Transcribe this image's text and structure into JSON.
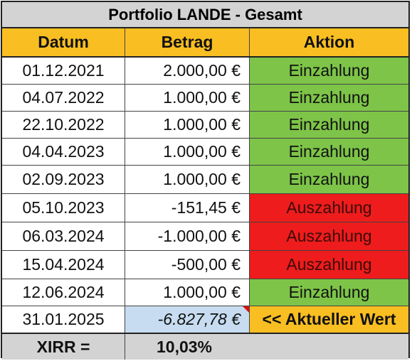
{
  "table": {
    "title": "Portfolio LANDE - Gesamt",
    "headers": {
      "date": "Datum",
      "amount": "Betrag",
      "action": "Aktion"
    },
    "rows": [
      {
        "date": "01.12.2021",
        "amount": "2.000,00 €",
        "action": "Einzahlung",
        "color": "#7dc448"
      },
      {
        "date": "04.07.2022",
        "amount": "1.000,00 €",
        "action": "Einzahlung",
        "color": "#7dc448"
      },
      {
        "date": "22.10.2022",
        "amount": "1.000,00 €",
        "action": "Einzahlung",
        "color": "#7dc448"
      },
      {
        "date": "04.04.2023",
        "amount": "1.000,00 €",
        "action": "Einzahlung",
        "color": "#7dc448"
      },
      {
        "date": "02.09.2023",
        "amount": "1.000,00 €",
        "action": "Einzahlung",
        "color": "#7dc448"
      },
      {
        "date": "05.10.2023",
        "amount": "-151,45 €",
        "action": "Auszahlung",
        "color": "#ee1c1c"
      },
      {
        "date": "06.03.2024",
        "amount": "-1.000,00 €",
        "action": "Auszahlung",
        "color": "#ee1c1c"
      },
      {
        "date": "15.04.2024",
        "amount": "-500,00 €",
        "action": "Auszahlung",
        "color": "#ee1c1c"
      },
      {
        "date": "12.06.2024",
        "amount": "1.000,00 €",
        "action": "Einzahlung",
        "color": "#7dc448"
      }
    ],
    "current": {
      "date": "31.01.2025",
      "amount": "-6.827,78 €",
      "action": "<< Aktueller Wert"
    },
    "footer": {
      "label": "XIRR =",
      "value": "10,03%"
    }
  },
  "colors": {
    "header_bg": "#f9be21",
    "title_bg": "#d3d3d3",
    "deposit": "#7dc448",
    "withdrawal": "#ee1c1c",
    "current_value_bg": "#c7dcf0"
  }
}
